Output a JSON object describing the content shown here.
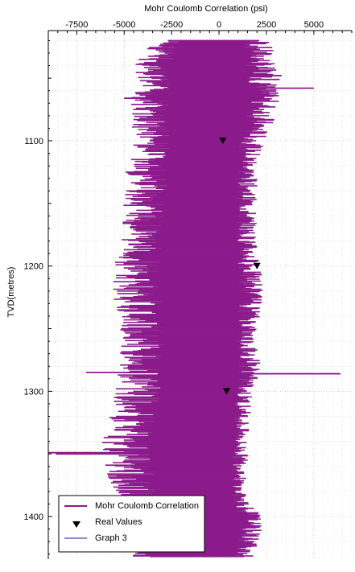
{
  "chart_data": {
    "type": "line",
    "title": "Mohr Coulomb Correlation (psi)",
    "xlabel": "Mohr Coulomb Correlation (psi)",
    "ylabel": "TVD(metres)",
    "x_axis_position": "top",
    "y_inverted": true,
    "xlim": [
      -9000,
      7000
    ],
    "ylim": [
      1012,
      1434
    ],
    "x_ticks": [
      -7500,
      -5000,
      -2500,
      0,
      2500,
      5000
    ],
    "x_tick_labels": [
      "-7500",
      "-5000",
      "-2500",
      "0",
      "2500",
      "5000"
    ],
    "y_ticks": [
      1100,
      1200,
      1300,
      1400
    ],
    "y_tick_labels": [
      "1100",
      "1200",
      "1300",
      "1400"
    ],
    "grid": true,
    "legend_position": "bottom-left",
    "series": [
      {
        "name": "Mohr Coulomb Correlation",
        "color": "#8b1a8b",
        "style": "horizontal-bars-from-zero",
        "depth_step": 1,
        "depth_start": 1020,
        "depth_end": 1432,
        "profile": [
          {
            "depth": 1020,
            "min": -3500,
            "max": 2800
          },
          {
            "depth": 1040,
            "min": -4600,
            "max": 3000
          },
          {
            "depth": 1060,
            "min": -4600,
            "max": 3200
          },
          {
            "depth": 1080,
            "min": -4800,
            "max": 3100
          },
          {
            "depth": 1100,
            "min": -4500,
            "max": 2400
          },
          {
            "depth": 1120,
            "min": -5000,
            "max": 2100
          },
          {
            "depth": 1140,
            "min": -5000,
            "max": 2000
          },
          {
            "depth": 1160,
            "min": -5100,
            "max": 2000
          },
          {
            "depth": 1180,
            "min": -5200,
            "max": 2000
          },
          {
            "depth": 1200,
            "min": -5600,
            "max": 2200
          },
          {
            "depth": 1220,
            "min": -5700,
            "max": 2400
          },
          {
            "depth": 1240,
            "min": -5300,
            "max": 2200
          },
          {
            "depth": 1260,
            "min": -5200,
            "max": 2000
          },
          {
            "depth": 1280,
            "min": -5300,
            "max": 2300
          },
          {
            "depth": 1300,
            "min": -5500,
            "max": 1800
          },
          {
            "depth": 1320,
            "min": -5800,
            "max": 1700
          },
          {
            "depth": 1340,
            "min": -6200,
            "max": 1500
          },
          {
            "depth": 1360,
            "min": -6000,
            "max": 1600
          },
          {
            "depth": 1380,
            "min": -5900,
            "max": 1300
          },
          {
            "depth": 1400,
            "min": -5600,
            "max": 2300
          },
          {
            "depth": 1420,
            "min": -5600,
            "max": 2200
          },
          {
            "depth": 1432,
            "min": -5300,
            "max": 1800
          }
        ],
        "spikes": [
          {
            "depth": 1048,
            "value": 3300
          },
          {
            "depth": 1051,
            "value": 3200
          },
          {
            "depth": 1058,
            "value": 5000
          },
          {
            "depth": 1066,
            "value": -5000
          },
          {
            "depth": 1285,
            "value": -7000
          },
          {
            "depth": 1286,
            "value": 6400
          },
          {
            "depth": 1349,
            "value": -9000
          },
          {
            "depth": 1350,
            "value": -8600
          }
        ]
      },
      {
        "name": "Real Values",
        "color": "#000000",
        "marker": "inverted-triangle",
        "points": [
          {
            "x": 200,
            "y": 1100
          },
          {
            "x": 2000,
            "y": 1200
          },
          {
            "x": 400,
            "y": 1300
          }
        ]
      },
      {
        "name": "Graph 3",
        "color": "#1a1a8b",
        "style": "line",
        "values": []
      }
    ]
  }
}
